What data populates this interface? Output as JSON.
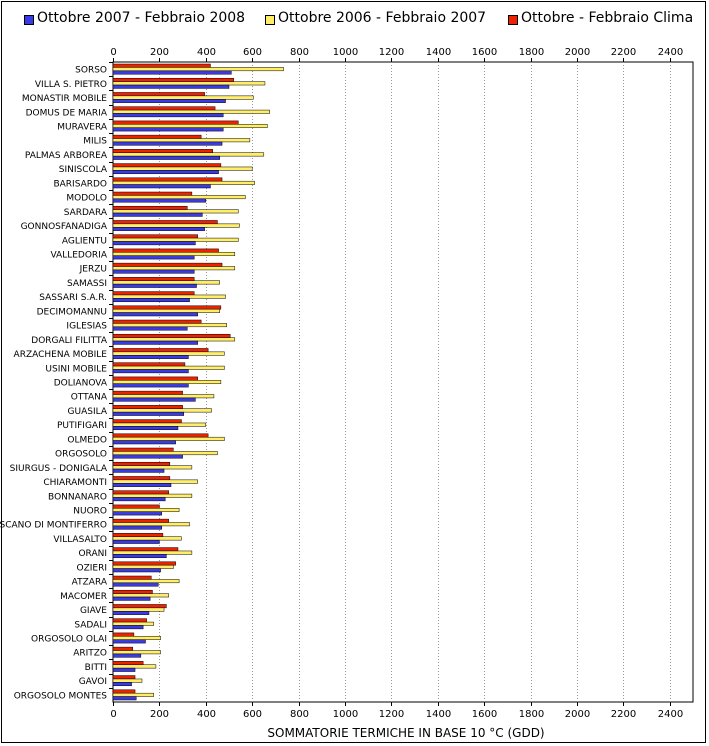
{
  "legend": [
    {
      "label": "Ottobre 2007 - Febbraio 2008",
      "color": "#3a3ae6"
    },
    {
      "label": "Ottobre 2006 - Febbraio 2007",
      "color": "#ffee66"
    },
    {
      "label": "Ottobre - Febbraio Clima",
      "color": "#ee2200"
    }
  ],
  "chart_data": {
    "type": "bar",
    "orientation": "horizontal",
    "xlabel": "SOMMATORIE TERMICHE IN BASE 10 °C (GDD)",
    "xlim": [
      0,
      2500
    ],
    "xticks": [
      0,
      200,
      400,
      600,
      800,
      1000,
      1200,
      1400,
      1600,
      1800,
      2000,
      2200,
      2400
    ],
    "grid": true,
    "legend_position": "top",
    "categories": [
      "SORSO",
      "VILLA S. PIETRO",
      "MONASTIR MOBILE",
      "DOMUS DE MARIA",
      "MURAVERA",
      "MILIS",
      "PALMAS ARBOREA",
      "SINISCOLA",
      "BARISARDO",
      "MODOLO",
      "SARDARA",
      "GONNOSFANADIGA",
      "AGLIENTU",
      "VALLEDORIA",
      "JERZU",
      "SAMASSI",
      "SASSARI S.A.R.",
      "DECIMOMANNU",
      "IGLESIAS",
      "DORGALI FILITTA",
      "ARZACHENA MOBILE",
      "USINI MOBILE",
      "DOLIANOVA",
      "OTTANA",
      "GUASILA",
      "PUTIFIGARI",
      "OLMEDO",
      "ORGOSOLO",
      "SIURGUS - DONIGALA",
      "CHIARAMONTI",
      "BONNANARO",
      "NUORO",
      "SCANO DI MONTIFERRO",
      "VILLASALTO",
      "ORANI",
      "OZIERI",
      "ATZARA",
      "MACOMER",
      "GIAVE",
      "SADALI",
      "ORGOSOLO OLAI",
      "ARITZO",
      "BITTI",
      "GAVOI",
      "ORGOSOLO MONTES"
    ],
    "series": [
      {
        "name": "Ottobre 2007 - Febbraio 2008",
        "color": "#3a3ae6",
        "values": [
          510,
          500,
          485,
          475,
          475,
          470,
          460,
          455,
          420,
          400,
          385,
          395,
          355,
          350,
          350,
          360,
          330,
          365,
          320,
          365,
          325,
          325,
          325,
          355,
          305,
          280,
          270,
          300,
          220,
          250,
          225,
          210,
          210,
          200,
          230,
          205,
          195,
          160,
          155,
          130,
          140,
          120,
          95,
          80,
          100
        ]
      },
      {
        "name": "Ottobre 2006 - Febbraio 2007",
        "color": "#ffee66",
        "values": [
          735,
          655,
          605,
          675,
          665,
          590,
          650,
          600,
          610,
          570,
          540,
          545,
          540,
          525,
          525,
          460,
          485,
          460,
          490,
          525,
          480,
          480,
          465,
          435,
          425,
          400,
          480,
          450,
          340,
          365,
          340,
          285,
          330,
          295,
          340,
          260,
          285,
          240,
          220,
          175,
          205,
          205,
          185,
          125,
          175
        ]
      },
      {
        "name": "Ottobre - Febbraio Clima",
        "color": "#ee2200",
        "values": [
          420,
          520,
          395,
          440,
          540,
          380,
          430,
          465,
          470,
          340,
          320,
          450,
          365,
          455,
          470,
          350,
          350,
          465,
          380,
          505,
          410,
          310,
          365,
          300,
          300,
          295,
          410,
          260,
          245,
          245,
          240,
          200,
          240,
          215,
          280,
          270,
          165,
          170,
          230,
          145,
          90,
          85,
          130,
          95,
          95
        ]
      }
    ]
  }
}
